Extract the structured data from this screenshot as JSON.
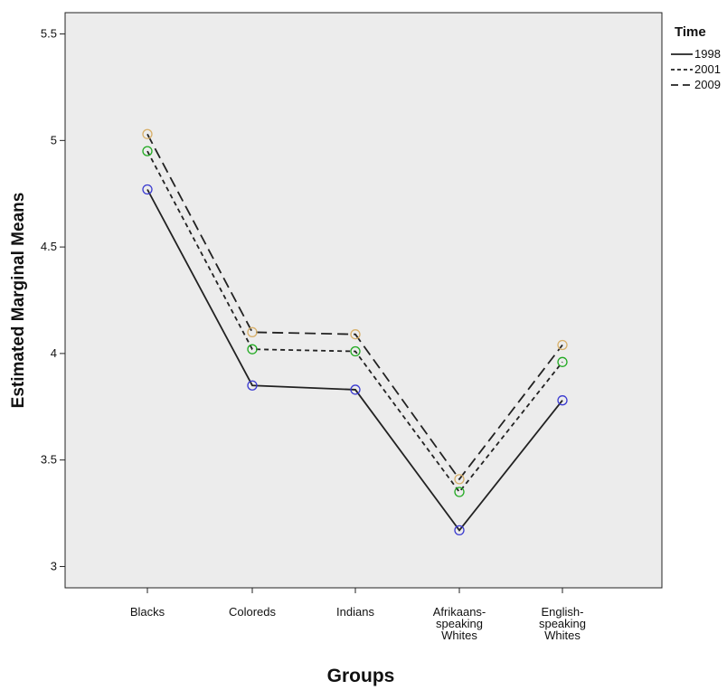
{
  "chart_data": {
    "type": "line",
    "xlabel": "Groups",
    "ylabel": "Estimated Marginal Means",
    "ylim": [
      2.9,
      5.6
    ],
    "yticks": [
      "3",
      "3.5",
      "4",
      "4.5",
      "5",
      "5.5"
    ],
    "categories": [
      [
        "Blacks"
      ],
      [
        "Coloreds"
      ],
      [
        "Indians"
      ],
      [
        "Afrikaans-",
        "speaking",
        "Whites"
      ],
      [
        "English-",
        "speaking",
        "Whites"
      ]
    ],
    "legend": {
      "title": "Time",
      "position": "top-right"
    },
    "plot_background": "#ececec",
    "grid": false,
    "series": [
      {
        "name": "1998",
        "line_style": "solid",
        "marker_color": "#3a3ad0",
        "values": [
          4.77,
          3.85,
          3.83,
          3.17,
          3.78
        ]
      },
      {
        "name": "2001",
        "line_style": "short-dash",
        "marker_color": "#22aa22",
        "values": [
          4.95,
          4.02,
          4.01,
          3.35,
          3.96
        ]
      },
      {
        "name": "2009",
        "line_style": "long-dash",
        "marker_color": "#d8b06a",
        "values": [
          5.03,
          4.1,
          4.09,
          3.41,
          4.04
        ]
      }
    ]
  }
}
